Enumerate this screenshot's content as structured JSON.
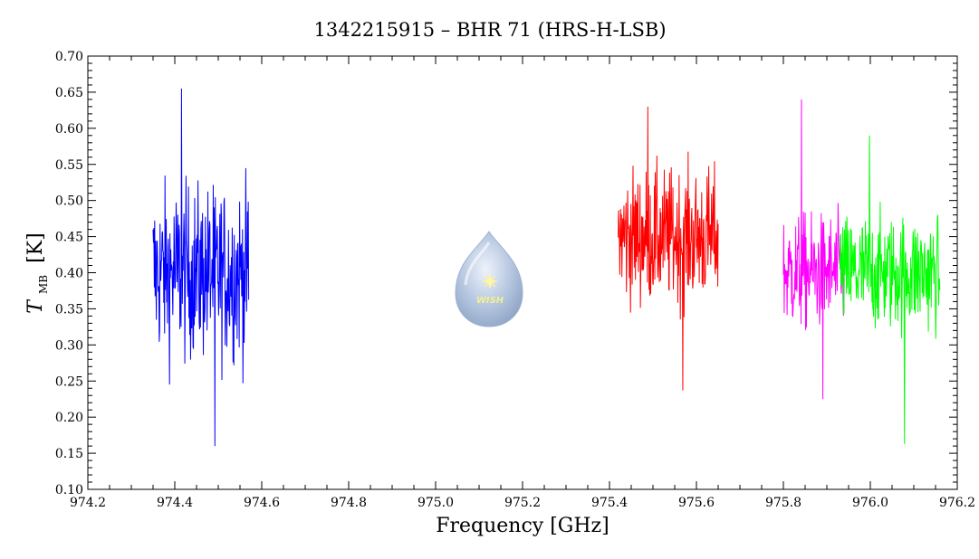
{
  "chart_data": {
    "type": "line",
    "title": "1342215915 – BHR 71 (HRS-H-LSB)",
    "xlabel": "Frequency [GHz]",
    "ylabel_symbol": "T",
    "ylabel_subscript": "MB",
    "ylabel_unit": "[K]",
    "xlim": [
      974.2,
      976.2
    ],
    "ylim": [
      0.1,
      0.7
    ],
    "x_ticks": [
      974.2,
      974.4,
      974.6,
      974.8,
      975.0,
      975.2,
      975.4,
      975.6,
      975.8,
      976.0,
      976.2
    ],
    "x_tick_labels": [
      "974.2",
      "974.4",
      "974.6",
      "974.8",
      "975.0",
      "975.2",
      "975.4",
      "975.6",
      "975.8",
      "976.0",
      "976.2"
    ],
    "y_ticks": [
      0.1,
      0.15,
      0.2,
      0.25,
      0.3,
      0.35,
      0.4,
      0.45,
      0.5,
      0.55,
      0.6,
      0.65,
      0.7
    ],
    "y_tick_labels": [
      "0.10",
      "0.15",
      "0.20",
      "0.25",
      "0.30",
      "0.35",
      "0.40",
      "0.45",
      "0.50",
      "0.55",
      "0.60",
      "0.65",
      "0.70"
    ],
    "grid": false,
    "series": [
      {
        "color": "#0000ff",
        "x_range": [
          974.35,
          974.57
        ],
        "mean": 0.4,
        "spread": 0.09,
        "min": 0.16,
        "max": 0.655
      },
      {
        "color": "#ff0000",
        "x_range": [
          975.42,
          975.65
        ],
        "mean": 0.45,
        "spread": 0.07,
        "min": 0.237,
        "max": 0.63
      },
      {
        "color": "#ff00ff",
        "x_range": [
          975.8,
          975.94
        ],
        "mean": 0.4,
        "spread": 0.06,
        "min": 0.225,
        "max": 0.64
      },
      {
        "color": "#00ff00",
        "x_range": [
          975.93,
          976.16
        ],
        "mean": 0.4,
        "spread": 0.06,
        "min": 0.163,
        "max": 0.59
      }
    ]
  },
  "logo": {
    "name": "wish-logo",
    "text": "WISH"
  }
}
